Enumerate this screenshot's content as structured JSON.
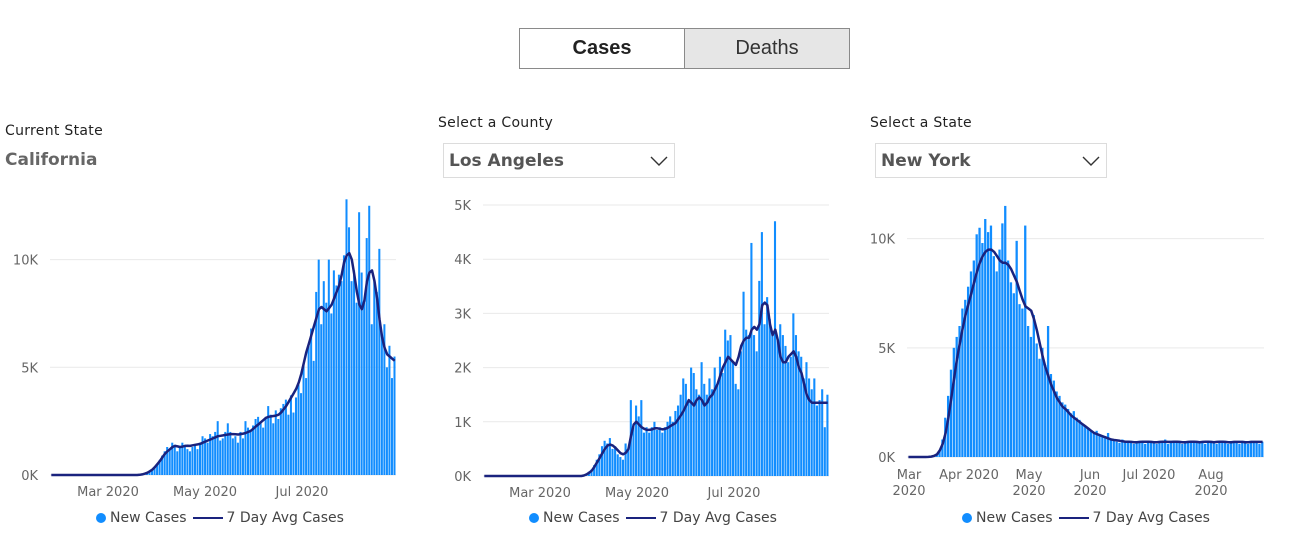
{
  "toggle": {
    "cases_label": "Cases",
    "deaths_label": "Deaths",
    "active": "cases"
  },
  "panel1": {
    "label": "Current State",
    "value": "California"
  },
  "panel2": {
    "label": "Select a County",
    "value": "Los Angeles"
  },
  "panel3": {
    "label": "Select a State",
    "value": "New York"
  },
  "legend": {
    "bar_label": "New Cases",
    "line_label": "7 Day Avg Cases"
  },
  "colors": {
    "bar": "#118DFF",
    "line": "#1A237E",
    "grid": "#e9e9e9"
  },
  "icons": {
    "dropdown": "chevron-down-icon"
  },
  "chart_data": [
    {
      "type": "bar",
      "title": "California",
      "x_ticks": [
        "Mar 2020",
        "May 2020",
        "Jul 2020"
      ],
      "y_ticks": [
        "0K",
        "5K",
        "10K"
      ],
      "ylim": [
        0,
        13000
      ],
      "series": [
        {
          "name": "New Cases",
          "type": "bar",
          "values": [
            0,
            0,
            0,
            0,
            0,
            0,
            0,
            0,
            0,
            0,
            0,
            0,
            0,
            0,
            0,
            0,
            0,
            0,
            0,
            0,
            0,
            0,
            0,
            0,
            0,
            0,
            0,
            0,
            0,
            0,
            0,
            0,
            0,
            0,
            0,
            20,
            40,
            60,
            100,
            150,
            200,
            350,
            500,
            700,
            900,
            1100,
            1300,
            1200,
            1500,
            1400,
            1100,
            1300,
            1500,
            1400,
            1200,
            1100,
            1300,
            1400,
            1200,
            1500,
            1800,
            1700,
            1500,
            1900,
            1800,
            2000,
            2500,
            1600,
            1700,
            2000,
            2400,
            2000,
            1700,
            1800,
            1500,
            2000,
            1700,
            2500,
            2200,
            2100,
            2300,
            2600,
            2700,
            2400,
            2200,
            2700,
            3200,
            2800,
            2400,
            3000,
            2600,
            3100,
            3300,
            3500,
            2800,
            3700,
            2900,
            3600,
            4200,
            3800,
            5200,
            4500,
            6000,
            6800,
            5300,
            8500,
            10000,
            7000,
            9000,
            8000,
            10000,
            7500,
            9500,
            8800,
            9300,
            9000,
            10200,
            12800,
            11500,
            9000,
            9500,
            8000,
            12200,
            9400,
            8000,
            11000,
            12500,
            7000,
            9000,
            8500,
            10500,
            6500,
            7000,
            5000,
            6000,
            4500,
            5500
          ],
          "start": "2020-01-26",
          "end": "2020-08-31"
        },
        {
          "name": "7 Day Avg Cases",
          "type": "line",
          "values": [
            0,
            0,
            0,
            0,
            0,
            0,
            0,
            0,
            0,
            0,
            0,
            0,
            0,
            0,
            0,
            0,
            0,
            0,
            0,
            0,
            0,
            0,
            0,
            0,
            0,
            0,
            0,
            0,
            0,
            0,
            0,
            0,
            0,
            0,
            0,
            10,
            30,
            60,
            100,
            170,
            250,
            360,
            500,
            650,
            820,
            980,
            1100,
            1200,
            1300,
            1350,
            1330,
            1300,
            1320,
            1350,
            1360,
            1350,
            1380,
            1400,
            1420,
            1450,
            1500,
            1550,
            1600,
            1650,
            1700,
            1750,
            1800,
            1820,
            1840,
            1860,
            1880,
            1900,
            1900,
            1890,
            1880,
            1900,
            1920,
            1950,
            2000,
            2050,
            2150,
            2250,
            2350,
            2450,
            2550,
            2650,
            2700,
            2720,
            2740,
            2760,
            2800,
            2900,
            3050,
            3200,
            3400,
            3600,
            3800,
            4000,
            4300,
            4700,
            5200,
            5700,
            6100,
            6500,
            6900,
            7300,
            7700,
            7800,
            7700,
            7600,
            7750,
            7900,
            8200,
            8500,
            8800,
            9300,
            9900,
            10200,
            10300,
            10000,
            9300,
            8500,
            7900,
            7700,
            8100,
            9000,
            9400,
            9500,
            9000,
            8200,
            7200,
            6400,
            5900,
            5600,
            5500,
            5400,
            5300
          ],
          "start": "2020-01-26",
          "end": "2020-08-31"
        }
      ]
    },
    {
      "type": "bar",
      "title": "Los Angeles",
      "x_ticks": [
        "Mar 2020",
        "May 2020",
        "Jul 2020"
      ],
      "y_ticks": [
        "0K",
        "1K",
        "2K",
        "3K",
        "4K",
        "5K"
      ],
      "ylim": [
        0,
        5000
      ],
      "series": [
        {
          "name": "New Cases",
          "type": "bar",
          "values": [
            0,
            0,
            0,
            0,
            0,
            0,
            0,
            0,
            0,
            0,
            0,
            0,
            0,
            0,
            0,
            0,
            0,
            0,
            0,
            0,
            0,
            0,
            0,
            0,
            0,
            0,
            0,
            0,
            0,
            0,
            0,
            0,
            0,
            0,
            0,
            0,
            0,
            0,
            20,
            40,
            80,
            120,
            200,
            300,
            400,
            550,
            650,
            600,
            700,
            500,
            550,
            400,
            350,
            300,
            600,
            500,
            1400,
            900,
            1300,
            1100,
            1400,
            800,
            900,
            800,
            900,
            1000,
            850,
            900,
            800,
            900,
            1000,
            1100,
            1000,
            1200,
            1300,
            1500,
            1800,
            1700,
            1400,
            2000,
            1900,
            1600,
            1500,
            2100,
            1700,
            1500,
            1800,
            1600,
            2000,
            1700,
            2200,
            1900,
            2700,
            2500,
            2600,
            2100,
            1700,
            1600,
            2300,
            3400,
            2700,
            2600,
            4300,
            2600,
            2300,
            3600,
            4500,
            2800,
            3300,
            2900,
            2600,
            4700,
            2500,
            2800,
            2600,
            2400,
            2100,
            2200,
            3000,
            2600,
            2300,
            2200,
            1800,
            2100,
            1800,
            1600,
            1800,
            1300,
            1400,
            1600,
            900,
            1500
          ],
          "start": "2020-01-26",
          "end": "2020-08-31"
        },
        {
          "name": "7 Day Avg Cases",
          "type": "line",
          "values": [
            0,
            0,
            0,
            0,
            0,
            0,
            0,
            0,
            0,
            0,
            0,
            0,
            0,
            0,
            0,
            0,
            0,
            0,
            0,
            0,
            0,
            0,
            0,
            0,
            0,
            0,
            0,
            0,
            0,
            0,
            0,
            0,
            0,
            0,
            0,
            0,
            0,
            0,
            10,
            30,
            60,
            100,
            170,
            250,
            330,
            420,
            500,
            560,
            580,
            560,
            520,
            470,
            420,
            400,
            430,
            500,
            750,
            950,
            1000,
            950,
            900,
            870,
            850,
            850,
            860,
            880,
            880,
            870,
            860,
            870,
            890,
            920,
            950,
            980,
            1050,
            1120,
            1200,
            1300,
            1400,
            1350,
            1300,
            1400,
            1450,
            1400,
            1300,
            1350,
            1450,
            1500,
            1600,
            1700,
            1850,
            2000,
            2100,
            2200,
            2150,
            2100,
            2050,
            2200,
            2400,
            2500,
            2550,
            2550,
            2700,
            2750,
            2700,
            2800,
            3150,
            3200,
            3150,
            2800,
            2600,
            2700,
            2500,
            2200,
            2100,
            2100,
            2200,
            2250,
            2300,
            2200,
            2000,
            1900,
            1700,
            1500,
            1400,
            1350,
            1350,
            1350,
            1350,
            1350,
            1350,
            1350
          ],
          "start": "2020-01-26",
          "end": "2020-08-31"
        }
      ]
    },
    {
      "type": "bar",
      "title": "New York",
      "x_ticks": [
        "Mar 2020",
        "Apr 2020",
        "May 2020",
        "Jun 2020",
        "Jul 2020",
        "Aug 2020"
      ],
      "y_ticks": [
        "0K",
        "5K",
        "10K"
      ],
      "ylim": [
        0,
        12000
      ],
      "series": [
        {
          "name": "New Cases",
          "type": "bar",
          "values": [
            0,
            0,
            0,
            0,
            0,
            0,
            0,
            10,
            30,
            60,
            150,
            300,
            800,
            1800,
            2800,
            4000,
            5000,
            5500,
            6000,
            6800,
            7200,
            7800,
            8500,
            9000,
            10200,
            10500,
            9800,
            10900,
            10300,
            10600,
            9200,
            8500,
            9500,
            10700,
            11500,
            9000,
            8000,
            7500,
            9900,
            7000,
            6800,
            10600,
            6000,
            5500,
            6500,
            5200,
            4500,
            5000,
            4200,
            6000,
            3800,
            3500,
            3000,
            2800,
            2500,
            2400,
            2200,
            2000,
            2100,
            1800,
            1700,
            1500,
            1400,
            1300,
            1200,
            1100,
            1200,
            1000,
            1000,
            900,
            1100,
            850,
            800,
            700,
            650,
            800,
            700,
            750,
            650,
            600,
            700,
            650,
            700,
            600,
            750,
            650,
            700,
            600,
            650,
            700,
            800,
            600,
            700,
            750,
            650,
            700,
            600,
            650,
            700,
            750,
            650,
            700,
            650,
            700,
            600,
            650,
            700,
            650,
            600,
            700,
            750,
            650,
            600,
            700,
            650,
            700,
            600,
            650,
            700,
            600,
            650,
            700,
            650,
            600,
            700
          ],
          "start": "2020-02-29",
          "end": "2020-08-31"
        },
        {
          "name": "7 Day Avg Cases",
          "type": "line",
          "values": [
            0,
            0,
            0,
            0,
            0,
            0,
            0,
            5,
            20,
            50,
            120,
            300,
            600,
            1100,
            1800,
            2700,
            3600,
            4500,
            5200,
            5900,
            6500,
            7000,
            7500,
            8000,
            8500,
            8900,
            9200,
            9400,
            9500,
            9500,
            9400,
            9200,
            9000,
            8900,
            8900,
            8800,
            8600,
            8300,
            8000,
            7600,
            7200,
            6900,
            6800,
            6700,
            6300,
            5800,
            5200,
            4600,
            4100,
            3700,
            3300,
            3000,
            2700,
            2500,
            2300,
            2200,
            2050,
            1900,
            1800,
            1700,
            1600,
            1500,
            1400,
            1300,
            1200,
            1100,
            1050,
            1000,
            950,
            900,
            850,
            800,
            780,
            760,
            740,
            720,
            700,
            700,
            690,
            680,
            680,
            690,
            700,
            700,
            700,
            690,
            680,
            680,
            690,
            700,
            700,
            690,
            690,
            700,
            700,
            690,
            680,
            680,
            690,
            700,
            700,
            690,
            680,
            690,
            700,
            700,
            690,
            680,
            690,
            700,
            700,
            690,
            680,
            680,
            690,
            690,
            690,
            690,
            680,
            680,
            690,
            690,
            690,
            690,
            690
          ],
          "start": "2020-02-29",
          "end": "2020-08-31"
        }
      ]
    }
  ]
}
